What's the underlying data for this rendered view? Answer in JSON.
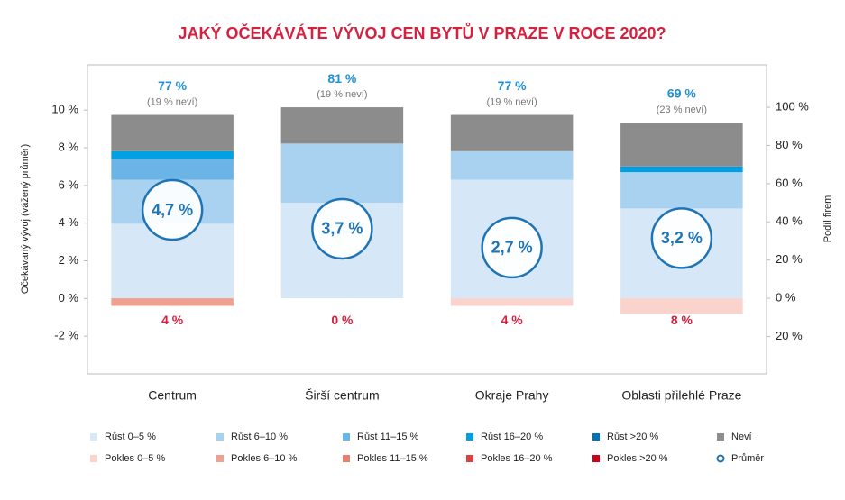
{
  "chart_data": {
    "type": "bar",
    "stacked": true,
    "title": "JAKÝ OČEKÁVÁTE VÝVOJ CEN BYTŮ V PRAZE V ROCE 2020?",
    "y_label": "Očekávaný vývoj (vážený průměr)",
    "y2_label": "Podíl firem",
    "categories": [
      "Centrum",
      "Širší centrum",
      "Okraje Prahy",
      "Oblasti přilehlé Praze"
    ],
    "ylim": [
      -4.0,
      12.4
    ],
    "yticks": [
      {
        "value": -2,
        "label": "-2 %"
      },
      {
        "value": 0,
        "label": "0 %"
      },
      {
        "value": 2,
        "label": "2 %"
      },
      {
        "value": 4,
        "label": "4 %"
      },
      {
        "value": 6,
        "label": "6 %"
      },
      {
        "value": 8,
        "label": "8 %"
      },
      {
        "value": 10,
        "label": "10 %"
      }
    ],
    "y2lim": [
      -39.6,
      122.2
    ],
    "y2ticks": [
      {
        "value": -20,
        "label": "20 %"
      },
      {
        "value": 0,
        "label": "0 %"
      },
      {
        "value": 20,
        "label": "20 %"
      },
      {
        "value": 40,
        "label": "40 %"
      },
      {
        "value": 60,
        "label": "60 %"
      },
      {
        "value": 80,
        "label": "80 %"
      },
      {
        "value": 100,
        "label": "100 %"
      }
    ],
    "growth_labels": [
      "77 %",
      "81 %",
      "77 %",
      "69 %"
    ],
    "unknown_labels": [
      "(19 % neví)",
      "(19 % neví)",
      "(19 % neví)",
      "(23 % neví)"
    ],
    "decline_labels": [
      "4 %",
      "0 %",
      "4 %",
      "8 %"
    ],
    "series": [
      {
        "name": "Růst 0–5 %",
        "color": "#d6e8f8",
        "axis": "y2",
        "values": [
          39,
          50,
          62,
          47
        ]
      },
      {
        "name": "Růst 6–10 %",
        "color": "#a9d1f0",
        "axis": "y2",
        "values": [
          23,
          31,
          15,
          19
        ]
      },
      {
        "name": "Růst 11–15 %",
        "color": "#6ab4e6",
        "axis": "y2",
        "values": [
          11,
          0,
          0,
          0
        ]
      },
      {
        "name": "Růst 16–20 %",
        "color": "#00a0e3",
        "axis": "y2",
        "values": [
          4,
          0,
          0,
          3
        ]
      },
      {
        "name": "Růst >20 %",
        "color": "#0072bc",
        "axis": "y2",
        "values": [
          0,
          0,
          0,
          0
        ]
      },
      {
        "name": "Neví",
        "color": "#8c8c8c",
        "axis": "y2",
        "values": [
          19,
          19,
          19,
          23
        ]
      },
      {
        "name": "Pokles 0–5 %",
        "color": "#fad4cc",
        "axis": "y2",
        "values": [
          0,
          0,
          -4,
          -8
        ]
      },
      {
        "name": "Pokles 6–10 %",
        "color": "#f0a090",
        "axis": "y2",
        "values": [
          -4,
          0,
          0,
          0
        ]
      },
      {
        "name": "Pokles 11–15 %",
        "color": "#e8806e",
        "axis": "y2",
        "values": [
          0,
          0,
          0,
          0
        ]
      },
      {
        "name": "Pokles 16–20 %",
        "color": "#e04040",
        "axis": "y2",
        "values": [
          0,
          0,
          0,
          0
        ]
      },
      {
        "name": "Pokles >20 %",
        "color": "#d0021b",
        "axis": "y2",
        "values": [
          0,
          0,
          0,
          0
        ]
      },
      {
        "name": "Průměr",
        "color": "#1f74b6",
        "axis": "y",
        "values": [
          4.7,
          3.7,
          2.7,
          3.2
        ],
        "value_labels": [
          "4,7 %",
          "3,7 %",
          "2,7 %",
          "3,2 %"
        ]
      }
    ]
  }
}
